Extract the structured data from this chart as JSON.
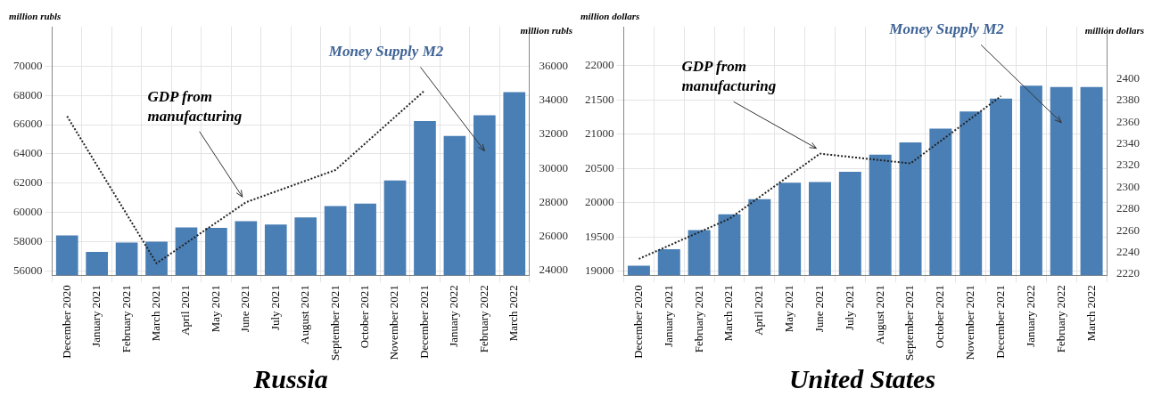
{
  "chart_data": [
    {
      "type": "bar",
      "title": "Russia",
      "ylabel": "million rubls",
      "y2label": "million rubls",
      "categories": [
        "December 2020",
        "January 2021",
        "February 2021",
        "March 2021",
        "April 2021",
        "May 2021",
        "June 2021",
        "July 2021",
        "August 2021",
        "September 2021",
        "October 2021",
        "November 2021",
        "December 2021",
        "January 2022",
        "February 2022",
        "March 2022"
      ],
      "series": [
        {
          "name": "Money Supply M2",
          "color": "#4a7fb5",
          "values": [
            58420,
            57300,
            57930,
            57990,
            58970,
            58940,
            59400,
            59170,
            59660,
            60430,
            60600,
            62180,
            66240,
            65230,
            66640,
            68220
          ]
        },
        {
          "name": "GDP from manufacturing",
          "type": "line",
          "axis": "y2",
          "color": "#222222",
          "line_style": "dotted",
          "values": [
            33070,
            null,
            null,
            24400,
            null,
            null,
            28000,
            null,
            null,
            29900,
            null,
            null,
            34600,
            null,
            null,
            null
          ]
        }
      ],
      "ylim": [
        55700,
        72700
      ],
      "yticks": [
        56000,
        58000,
        60000,
        62000,
        64000,
        66000,
        68000,
        70000
      ],
      "y2lim": [
        23700,
        38350
      ],
      "y2ticks": [
        24000,
        26000,
        28000,
        30000,
        32000,
        34000,
        36000
      ],
      "grid": true
    },
    {
      "type": "bar",
      "title": "United States",
      "ylabel": "million dollars",
      "y2label": "million dollars",
      "categories": [
        "December 2020",
        "January 2021",
        "February 2021",
        "March 2021",
        "April 2021",
        "May 2021",
        "June 2021",
        "July 2021",
        "August 2021",
        "September 2021",
        "October 2021",
        "November 2021",
        "December 2021",
        "January 2022",
        "February 2022",
        "March 2022"
      ],
      "series": [
        {
          "name": "Money Supply M2",
          "color": "#4a7fb5",
          "values": [
            19080,
            19320,
            19600,
            19830,
            20050,
            20290,
            20300,
            20450,
            20700,
            20880,
            21080,
            21330,
            21520,
            21710,
            21690,
            21690
          ]
        },
        {
          "name": "GDP from manufacturing",
          "type": "line",
          "axis": "y2",
          "color": "#222222",
          "line_style": "dotted",
          "values": [
            2234,
            null,
            null,
            2271,
            null,
            null,
            2331,
            null,
            null,
            2322,
            null,
            null,
            2384,
            null,
            null,
            null
          ]
        }
      ],
      "ylim": [
        18940,
        22570
      ],
      "yticks": [
        19000,
        19500,
        20000,
        20500,
        21000,
        21500,
        22000
      ],
      "y2lim": [
        2219,
        2448
      ],
      "y2ticks": [
        2220,
        2240,
        2260,
        2280,
        2300,
        2320,
        2340,
        2360,
        2380,
        2400
      ],
      "grid": true
    }
  ]
}
